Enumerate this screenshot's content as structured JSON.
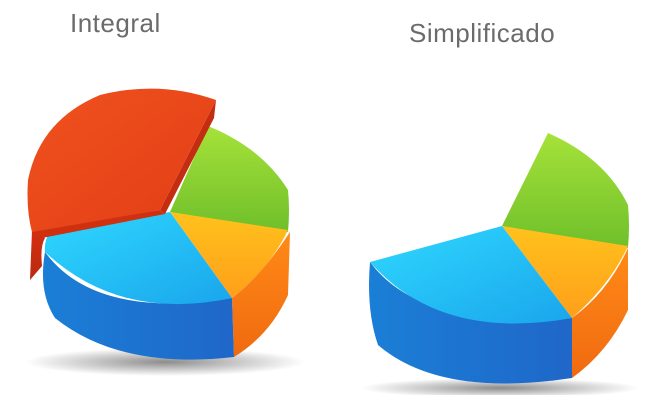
{
  "chart_data": [
    {
      "type": "pie",
      "title": "Integral",
      "style": "3d-exploded",
      "slices": [
        {
          "color": "#e8461c",
          "value": 38,
          "exploded": true
        },
        {
          "color": "#86cf2c",
          "value": 16
        },
        {
          "color": "#f7a21c",
          "value": 14
        },
        {
          "color": "#1ea7ec",
          "value": 32
        }
      ]
    },
    {
      "type": "pie",
      "title": "Simplificado",
      "style": "3d-partial",
      "slices": [
        {
          "color": "#86cf2c",
          "value": 16
        },
        {
          "color": "#f7a21c",
          "value": 14
        },
        {
          "color": "#1ea7ec",
          "value": 32
        }
      ]
    }
  ]
}
